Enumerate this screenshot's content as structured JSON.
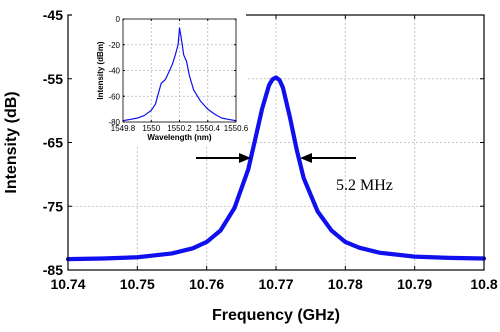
{
  "chart_data": [
    {
      "type": "line",
      "xlabel": "Frequency (GHz)",
      "ylabel": "Intensity (dB)",
      "xlim": [
        10.74,
        10.8
      ],
      "ylim": [
        -85,
        -45
      ],
      "xticks": [
        10.74,
        10.75,
        10.76,
        10.77,
        10.78,
        10.79,
        10.8
      ],
      "xtick_labels": [
        "10.74",
        "10.75",
        "10.76",
        "10.77",
        "10.78",
        "10.79",
        "10.8"
      ],
      "yticks": [
        -85,
        -75,
        -65,
        -55,
        -45
      ],
      "ytick_labels": [
        "-85",
        "-75",
        "-65",
        "-55",
        "-45"
      ],
      "grid": true,
      "series_color": "#1010ee",
      "series": [
        {
          "x": [
            10.74,
            10.745,
            10.75,
            10.755,
            10.758,
            10.76,
            10.762,
            10.764,
            10.766,
            10.767,
            10.768,
            10.769,
            10.7695,
            10.77,
            10.7705,
            10.771,
            10.772,
            10.773,
            10.774,
            10.776,
            10.778,
            10.78,
            10.782,
            10.785,
            10.79,
            10.795,
            10.8
          ],
          "y": [
            -83.3,
            -83.2,
            -83.0,
            -82.4,
            -81.6,
            -80.6,
            -78.8,
            -75.3,
            -69.2,
            -64.5,
            -59.7,
            -56.0,
            -55.1,
            -54.8,
            -55.2,
            -56.4,
            -61.0,
            -66.2,
            -70.6,
            -75.8,
            -78.8,
            -80.6,
            -81.5,
            -82.3,
            -82.9,
            -83.1,
            -83.2
          ]
        }
      ],
      "annotations": [
        {
          "text": "5.2 MHz",
          "arrows": "two arrows pointing inward at the linewidth"
        }
      ]
    },
    {
      "type": "line",
      "xlabel": "Wavelength (nm)",
      "ylabel": "Intensity (dBm)",
      "xlim": [
        1549.8,
        1550.6
      ],
      "ylim": [
        -80,
        0
      ],
      "xticks": [
        1549.8,
        1550,
        1550.2,
        1550.4,
        1550.6
      ],
      "xtick_labels": [
        "1549.8",
        "1550",
        "1550.2",
        "1550.4",
        "1550.6"
      ],
      "yticks": [
        0,
        -20,
        -40,
        -60,
        -80
      ],
      "ytick_labels": [
        "0",
        "-20",
        "-40",
        "-60",
        "-80"
      ],
      "grid": true,
      "series_color": "#1010ee",
      "series": [
        {
          "x": [
            1549.8,
            1549.85,
            1549.9,
            1549.95,
            1550.0,
            1550.03,
            1550.05,
            1550.07,
            1550.1,
            1550.13,
            1550.15,
            1550.17,
            1550.19,
            1550.2,
            1550.21,
            1550.23,
            1550.25,
            1550.27,
            1550.3,
            1550.35,
            1550.4,
            1550.45,
            1550.5,
            1550.55,
            1550.6
          ],
          "y": [
            -79,
            -78,
            -77,
            -75,
            -71,
            -66,
            -58,
            -50,
            -47,
            -40,
            -35,
            -28,
            -20,
            -7,
            -13,
            -28,
            -33,
            -44,
            -55,
            -64,
            -70,
            -74,
            -77,
            -78,
            -79
          ]
        }
      ]
    }
  ]
}
